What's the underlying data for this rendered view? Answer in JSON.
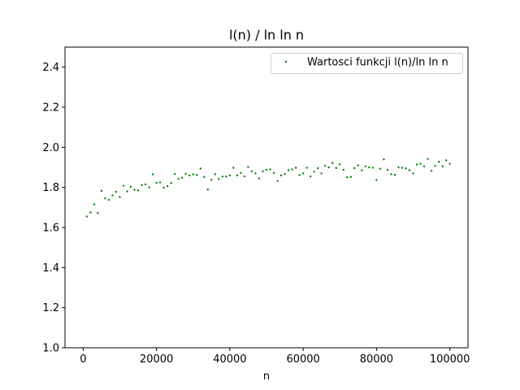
{
  "chart_data": {
    "type": "scatter",
    "title": "l(n) / ln ln n",
    "xlabel": "n",
    "ylabel": "",
    "xlim": [
      -4950,
      104950
    ],
    "ylim": [
      1.0,
      2.5
    ],
    "xticks": [
      0,
      20000,
      40000,
      60000,
      80000,
      100000
    ],
    "xtick_labels": [
      "0",
      "20000",
      "40000",
      "60000",
      "80000",
      "100000"
    ],
    "yticks": [
      1.0,
      1.2,
      1.4,
      1.6,
      1.8,
      2.0,
      2.2,
      2.4
    ],
    "ytick_labels": [
      "1.0",
      "1.2",
      "1.4",
      "1.6",
      "1.8",
      "2.0",
      "2.2",
      "2.4"
    ],
    "grid": false,
    "legend_position": "top-right",
    "series": [
      {
        "name": "Wartosci funkcji l(n)/ln ln n",
        "color": "#008000",
        "marker": "point",
        "x": [
          1000,
          2000,
          3000,
          4000,
          5000,
          6000,
          7000,
          8000,
          9000,
          10000,
          11000,
          12000,
          13000,
          14000,
          15000,
          16000,
          17000,
          18000,
          19000,
          20000,
          21000,
          22000,
          23000,
          24000,
          25000,
          26000,
          27000,
          28000,
          29000,
          30000,
          31000,
          32000,
          33000,
          34000,
          35000,
          36000,
          37000,
          38000,
          39000,
          40000,
          41000,
          42000,
          43000,
          44000,
          45000,
          46000,
          47000,
          48000,
          49000,
          50000,
          51000,
          52000,
          53000,
          54000,
          55000,
          56000,
          57000,
          58000,
          59000,
          60000,
          61000,
          62000,
          63000,
          64000,
          65000,
          66000,
          67000,
          68000,
          69000,
          70000,
          71000,
          72000,
          73000,
          74000,
          75000,
          76000,
          77000,
          78000,
          79000,
          80000,
          81000,
          82000,
          83000,
          84000,
          85000,
          86000,
          87000,
          88000,
          89000,
          90000,
          91000,
          92000,
          93000,
          94000,
          95000,
          96000,
          97000,
          98000,
          99000,
          100000
        ],
        "y": [
          1.655,
          1.675,
          1.715,
          1.672,
          1.783,
          1.745,
          1.738,
          1.76,
          1.778,
          1.752,
          1.808,
          1.78,
          1.803,
          1.788,
          1.785,
          1.812,
          1.815,
          1.8,
          1.865,
          1.823,
          1.825,
          1.798,
          1.806,
          1.822,
          1.867,
          1.843,
          1.848,
          1.868,
          1.86,
          1.865,
          1.862,
          1.894,
          1.852,
          1.79,
          1.838,
          1.866,
          1.842,
          1.854,
          1.854,
          1.86,
          1.898,
          1.86,
          1.872,
          1.855,
          1.902,
          1.88,
          1.87,
          1.845,
          1.88,
          1.888,
          1.89,
          1.872,
          1.832,
          1.86,
          1.867,
          1.886,
          1.89,
          1.898,
          1.862,
          1.87,
          1.898,
          1.855,
          1.878,
          1.896,
          1.87,
          1.908,
          1.9,
          1.922,
          1.897,
          1.915,
          1.888,
          1.85,
          1.852,
          1.896,
          1.91,
          1.885,
          1.905,
          1.9,
          1.898,
          1.837,
          1.893,
          1.94,
          1.888,
          1.866,
          1.863,
          1.9,
          1.898,
          1.895,
          1.886,
          1.87,
          1.914,
          1.918,
          1.905,
          1.942,
          1.883,
          1.908,
          1.928,
          1.905,
          1.935,
          1.918
        ]
      }
    ]
  }
}
